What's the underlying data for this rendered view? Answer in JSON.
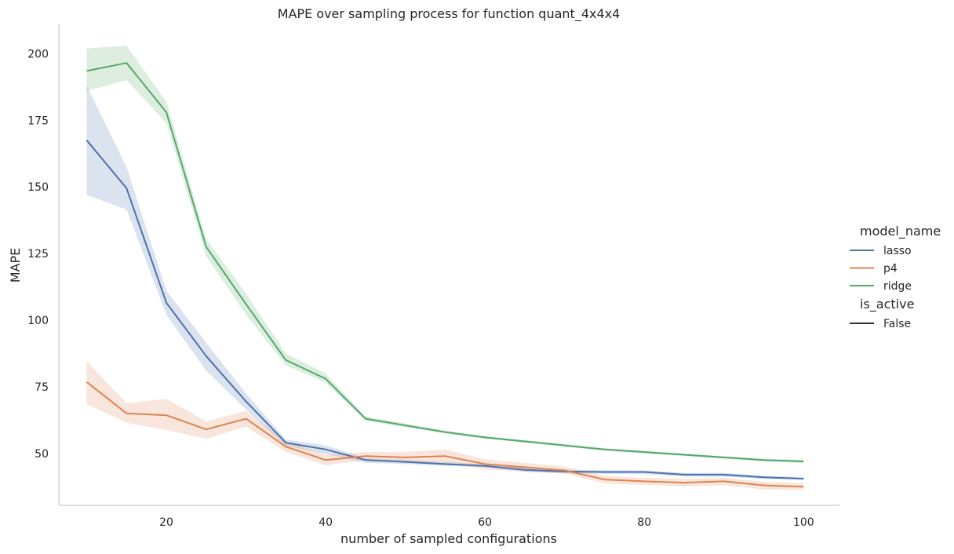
{
  "chart_data": {
    "type": "line",
    "title": "MAPE over sampling process for function quant_4x4x4",
    "xlabel": "number of sampled configurations",
    "ylabel": "MAPE",
    "xlim": [
      6.5,
      104.5
    ],
    "ylim": [
      30.5,
      211
    ],
    "xticks": [
      20,
      40,
      60,
      80,
      100
    ],
    "yticks": [
      50,
      75,
      100,
      125,
      150,
      175,
      200
    ],
    "grid": false,
    "legend": {
      "placement": "right",
      "hue_title": "model_name",
      "style_title": "is_active",
      "style_entries": [
        {
          "label": "False",
          "color": "#333333"
        }
      ]
    },
    "x": [
      10,
      15,
      20,
      25,
      30,
      35,
      40,
      45,
      50,
      55,
      60,
      65,
      70,
      75,
      80,
      85,
      90,
      95,
      100
    ],
    "series": [
      {
        "name": "lasso",
        "color": "#4c72b0",
        "values": [
          167.5,
          149.5,
          106.5,
          86.5,
          69.5,
          54,
          51.5,
          47.5,
          46.8,
          46,
          45.3,
          43.8,
          43.2,
          43,
          43,
          42,
          42,
          41,
          40.5
        ],
        "lower": [
          147,
          141.5,
          102,
          81,
          66.5,
          52.8,
          49.8,
          46.5,
          46,
          45.3,
          44.8,
          43,
          42.5,
          42.3,
          42.2,
          41.3,
          41.2,
          40.4,
          40.1
        ],
        "upper": [
          188,
          157.5,
          111,
          91.5,
          72.5,
          55.2,
          53,
          48.2,
          47.6,
          46.8,
          45.9,
          44.6,
          44,
          43.7,
          43.7,
          42.7,
          42.7,
          41.6,
          41
        ]
      },
      {
        "name": "p4",
        "color": "#dd8452",
        "values": [
          76.8,
          65,
          64.3,
          59,
          63,
          52.5,
          47.5,
          49,
          48.5,
          49,
          46,
          44.8,
          43.6,
          40.2,
          39.5,
          39,
          39.5,
          38,
          37.5
        ],
        "lower": [
          68.5,
          61.5,
          58.8,
          55.5,
          60,
          50.5,
          45.5,
          47.5,
          46.5,
          46.5,
          44,
          43.2,
          42.5,
          38.7,
          38.2,
          37.5,
          38,
          36.5,
          36.2
        ],
        "upper": [
          84.5,
          68.8,
          70.5,
          62,
          66,
          54.5,
          49.5,
          50.5,
          50.5,
          51.5,
          47.8,
          46.5,
          45,
          41.5,
          40.8,
          40.5,
          40.8,
          39.3,
          38.8
        ]
      },
      {
        "name": "ridge",
        "color": "#55a868",
        "values": [
          193.5,
          196.5,
          178,
          127.5,
          106,
          85,
          78,
          63,
          60.5,
          58,
          56,
          54.5,
          53,
          51.5,
          50.5,
          49.5,
          48.5,
          47.5,
          47
        ],
        "lower": [
          186,
          190,
          174,
          124,
          102,
          83,
          76.5,
          62.2,
          59.8,
          57.4,
          55.5,
          54,
          52.5,
          51,
          50,
          49,
          48,
          47,
          46.4
        ],
        "upper": [
          202,
          203,
          182,
          130.5,
          110,
          87.5,
          80,
          63.8,
          61.2,
          58.6,
          56.5,
          55,
          53.5,
          52,
          51,
          50,
          49,
          48,
          47.6
        ]
      }
    ]
  }
}
